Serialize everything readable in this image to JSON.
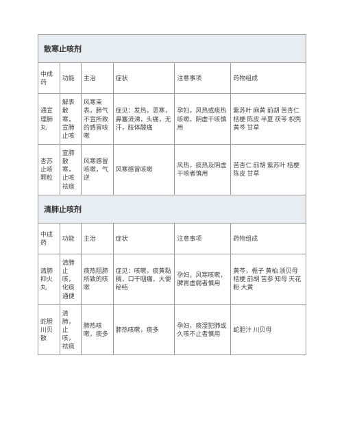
{
  "sections": [
    {
      "title": "散寒止咳剂",
      "headers": {
        "name": "中成药",
        "func": "功能",
        "treat": "主治",
        "symptom": "症状",
        "caution": "注意事项",
        "compose": "药物组成"
      },
      "rows": [
        {
          "name": "通宣理肺丸",
          "func": "解表散寒，宣肺止咳",
          "treat": "风寒束表，肺气不宣所致的感冒咳嗽",
          "symptom": "症见：发热，恶寒，鼻塞流涕，头痛，无汗，肢体酸痛",
          "caution": "孕妇，风热或痰热咳嗽，阴虚干咳慎用",
          "compose": "紫苏叶 麻黄 前胡 苦杏仁 桔梗 陈皮 半夏 茯苓 枳壳 黄芩 甘草"
        },
        {
          "name": "杏苏止咳颗粒",
          "func": "宣肺散寒，止咳祛痰",
          "treat": "风寒感冒咳嗽，气逆",
          "symptom": "风寒感冒咳嗽",
          "caution": "风热，痰热及阴虚干咳者慎用",
          "compose": "苦杏仁 前胡 紫苏叶 桔梗 陈皮 甘草"
        }
      ]
    },
    {
      "title": "清肺止咳剂",
      "headers": {
        "name": "中成药",
        "func": "功能",
        "treat": "主治",
        "symptom": "症状",
        "caution": "注意事项",
        "compose": "药物组成"
      },
      "rows": [
        {
          "name": "清肺抑火丸",
          "func": "清肺止咳，化痰通便",
          "treat": "痰热阻肺所致的咳嗽",
          "symptom": "症见：咳嗽，痰黄黏稠，口干咽痛，大便秘结",
          "caution": "孕妇，风寒咳嗽，脾胃虚弱者慎用",
          "compose": "黄芩，栀子 黄柏 浙贝母 桔梗 前胡 苦参 知母 天花粉 大黄"
        },
        {
          "name": "蛇胆川贝散",
          "func": "清肺，止咳，祛痰",
          "treat": "肺热咳嗽，痰多",
          "symptom": "肺热咳嗽，痰多",
          "caution": "孕妇，痰湿犯肺或久咳不止者慎用",
          "compose": "蛇胆汁 川贝母"
        }
      ]
    }
  ]
}
